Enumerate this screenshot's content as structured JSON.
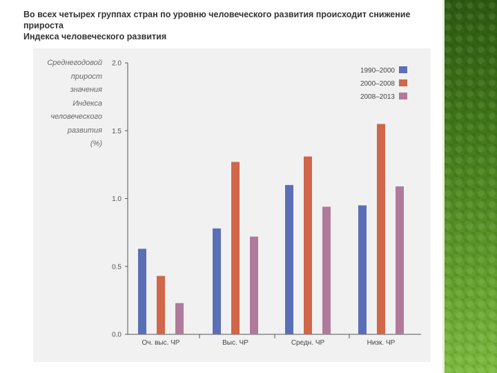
{
  "slide": {
    "title_line1": "Во всех четырех группах стран по уровню человеческого развития происходит снижение прироста",
    "title_line2": "Индекса человеческого развития"
  },
  "chart_data": {
    "type": "bar",
    "title": "",
    "ylabel_lines": [
      "Среднегодовой",
      "прирост",
      "значения",
      "Индекса",
      "человеческого",
      "развития",
      "(%)"
    ],
    "xlabel": "",
    "categories": [
      "Оч. выс. ЧР",
      "Выс. ЧР",
      "Средн. ЧР",
      "Низк. ЧР"
    ],
    "ylim": [
      0,
      2.0
    ],
    "yticks": [
      "0.0",
      "0.5",
      "1.0",
      "1.5",
      "2.0"
    ],
    "ytick_values": [
      0,
      0.5,
      1.0,
      1.5,
      2.0
    ],
    "legend_position": "top-right",
    "series": [
      {
        "name": "1990–2000",
        "color": "#5a6fb5",
        "values": [
          0.63,
          0.78,
          1.1,
          0.95
        ]
      },
      {
        "name": "2000–2008",
        "color": "#d0664a",
        "values": [
          0.43,
          1.27,
          1.31,
          1.55
        ]
      },
      {
        "name": "2008–2013",
        "color": "#b07a9a",
        "values": [
          0.23,
          0.72,
          0.94,
          1.09
        ]
      }
    ]
  }
}
